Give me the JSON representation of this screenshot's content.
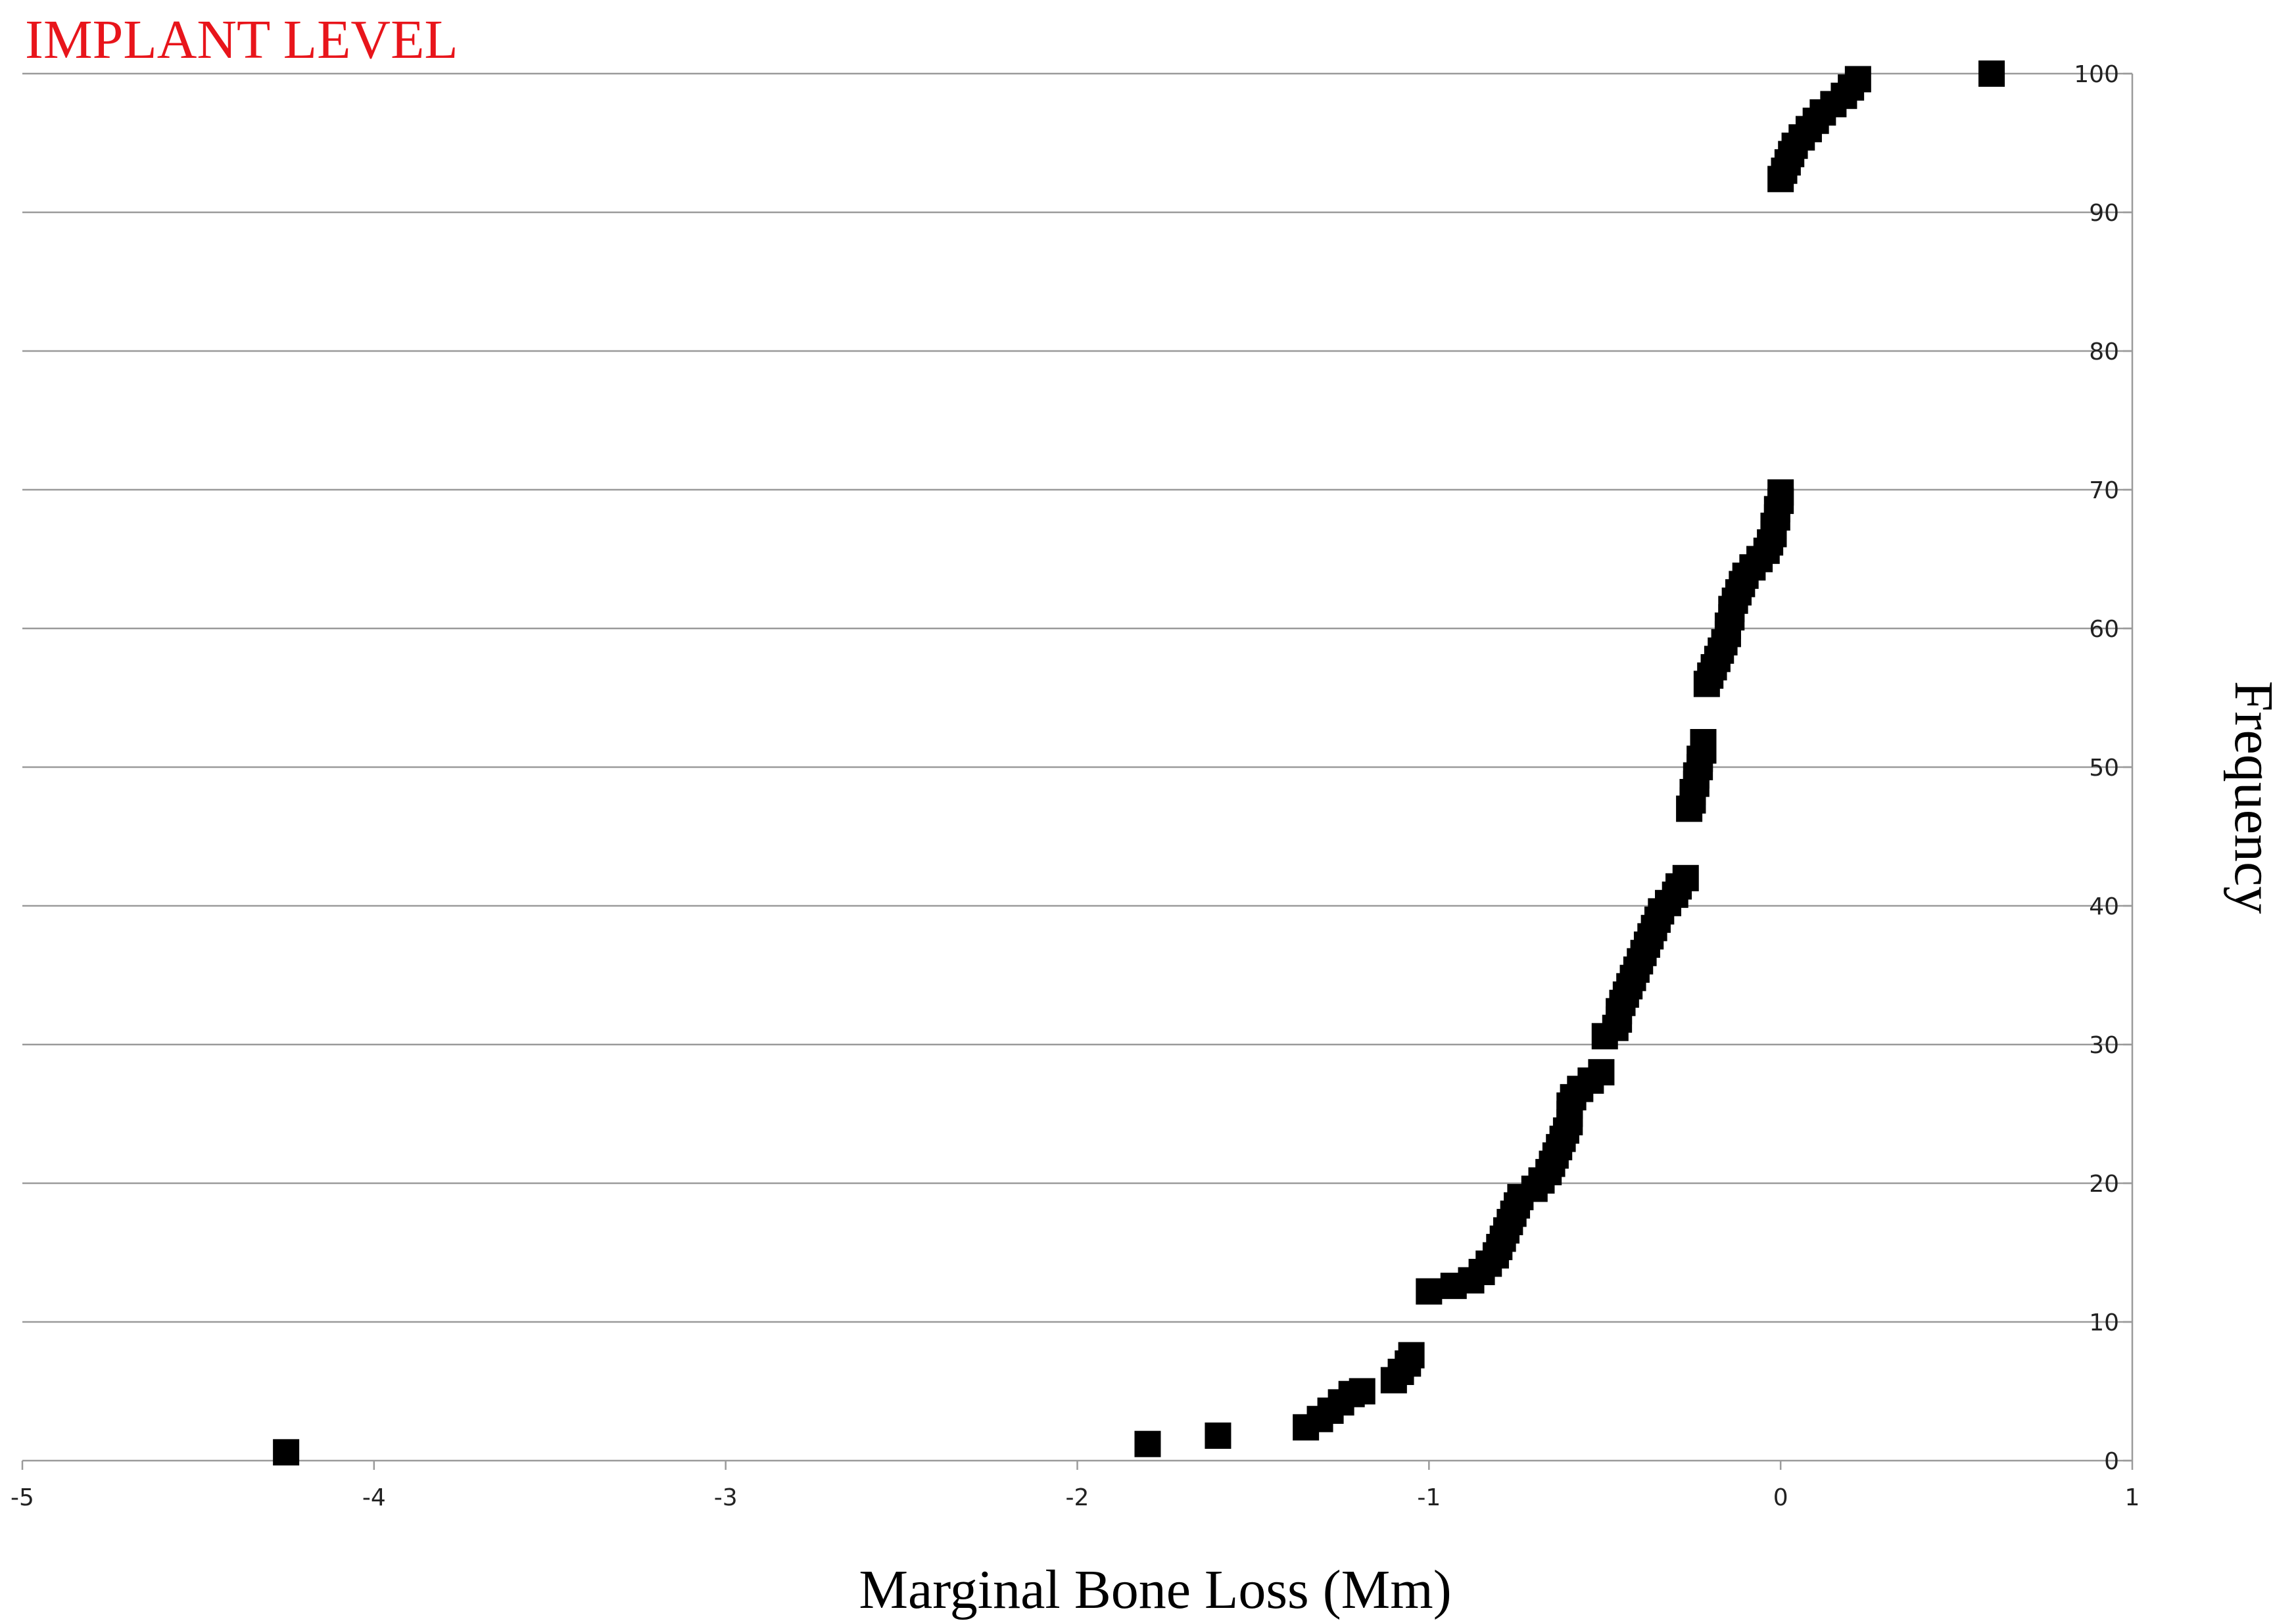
{
  "chart_data": {
    "type": "scatter",
    "title": "IMPLANT LEVEL",
    "xlabel": "Marginal Bone Loss (Mm)",
    "ylabel": "Frequency",
    "xlim": [
      -5,
      1
    ],
    "ylim": [
      0,
      100
    ],
    "x_ticks": [
      -5,
      -4,
      -3,
      -2,
      -1,
      0,
      1
    ],
    "y_ticks": [
      0,
      10,
      20,
      30,
      40,
      50,
      60,
      70,
      80,
      90,
      100
    ],
    "grid": true,
    "y_axis_position": "right",
    "marker": "square",
    "colors": {
      "title": "#e8151b",
      "marker": "#000000",
      "grid": "#9a9a9a"
    },
    "series": [
      {
        "points": [
          [
            -4.25,
            0.6
          ],
          [
            -1.8,
            1.2
          ],
          [
            -1.6,
            1.8
          ],
          [
            -1.35,
            2.4
          ],
          [
            -1.31,
            3.0
          ],
          [
            -1.28,
            3.6
          ],
          [
            -1.25,
            4.2
          ],
          [
            -1.22,
            4.8
          ],
          [
            -1.19,
            5.0
          ],
          [
            -1.1,
            5.8
          ],
          [
            -1.08,
            6.4
          ],
          [
            -1.06,
            7.0
          ],
          [
            -1.05,
            7.6
          ],
          [
            -1.0,
            12.2
          ],
          [
            -0.93,
            12.6
          ],
          [
            -0.88,
            13.0
          ],
          [
            -0.85,
            13.6
          ],
          [
            -0.83,
            14.2
          ],
          [
            -0.81,
            14.8
          ],
          [
            -0.8,
            15.4
          ],
          [
            -0.79,
            16.0
          ],
          [
            -0.78,
            16.6
          ],
          [
            -0.77,
            17.2
          ],
          [
            -0.76,
            17.8
          ],
          [
            -0.75,
            18.4
          ],
          [
            -0.74,
            19.0
          ],
          [
            -0.7,
            19.6
          ],
          [
            -0.68,
            20.2
          ],
          [
            -0.66,
            20.8
          ],
          [
            -0.65,
            21.4
          ],
          [
            -0.64,
            22.0
          ],
          [
            -0.63,
            22.6
          ],
          [
            -0.62,
            23.2
          ],
          [
            -0.61,
            23.8
          ],
          [
            -0.6,
            24.4
          ],
          [
            -0.6,
            25.0
          ],
          [
            -0.6,
            25.6
          ],
          [
            -0.59,
            26.2
          ],
          [
            -0.57,
            26.8
          ],
          [
            -0.54,
            27.4
          ],
          [
            -0.51,
            28.0
          ],
          [
            -0.5,
            30.6
          ],
          [
            -0.47,
            31.2
          ],
          [
            -0.46,
            31.8
          ],
          [
            -0.46,
            32.4
          ],
          [
            -0.45,
            33.0
          ],
          [
            -0.44,
            33.6
          ],
          [
            -0.43,
            34.2
          ],
          [
            -0.42,
            34.8
          ],
          [
            -0.41,
            35.4
          ],
          [
            -0.4,
            36.0
          ],
          [
            -0.39,
            36.6
          ],
          [
            -0.38,
            37.2
          ],
          [
            -0.37,
            37.8
          ],
          [
            -0.36,
            38.4
          ],
          [
            -0.35,
            39.0
          ],
          [
            -0.34,
            39.6
          ],
          [
            -0.32,
            40.2
          ],
          [
            -0.3,
            40.8
          ],
          [
            -0.29,
            41.4
          ],
          [
            -0.27,
            42.0
          ],
          [
            -0.26,
            47.0
          ],
          [
            -0.25,
            47.6
          ],
          [
            -0.25,
            48.2
          ],
          [
            -0.24,
            48.8
          ],
          [
            -0.24,
            49.4
          ],
          [
            -0.23,
            50.0
          ],
          [
            -0.23,
            50.6
          ],
          [
            -0.22,
            51.2
          ],
          [
            -0.22,
            51.8
          ],
          [
            -0.21,
            56.0
          ],
          [
            -0.2,
            56.6
          ],
          [
            -0.19,
            57.2
          ],
          [
            -0.18,
            57.8
          ],
          [
            -0.17,
            58.4
          ],
          [
            -0.16,
            59.0
          ],
          [
            -0.15,
            59.6
          ],
          [
            -0.15,
            60.2
          ],
          [
            -0.14,
            60.8
          ],
          [
            -0.14,
            61.4
          ],
          [
            -0.13,
            62.0
          ],
          [
            -0.12,
            62.6
          ],
          [
            -0.11,
            63.2
          ],
          [
            -0.1,
            63.8
          ],
          [
            -0.08,
            64.4
          ],
          [
            -0.06,
            65.0
          ],
          [
            -0.04,
            65.6
          ],
          [
            -0.03,
            66.2
          ],
          [
            -0.02,
            66.8
          ],
          [
            -0.02,
            67.4
          ],
          [
            -0.01,
            68.0
          ],
          [
            -0.01,
            68.6
          ],
          [
            0.0,
            69.2
          ],
          [
            0.0,
            69.8
          ],
          [
            0.0,
            92.4
          ],
          [
            0.01,
            93.0
          ],
          [
            0.02,
            93.6
          ],
          [
            0.03,
            94.2
          ],
          [
            0.04,
            94.8
          ],
          [
            0.06,
            95.4
          ],
          [
            0.08,
            96.0
          ],
          [
            0.1,
            96.6
          ],
          [
            0.12,
            97.2
          ],
          [
            0.15,
            97.8
          ],
          [
            0.18,
            98.4
          ],
          [
            0.2,
            99.0
          ],
          [
            0.22,
            99.6
          ],
          [
            0.6,
            100.0
          ]
        ]
      }
    ]
  }
}
